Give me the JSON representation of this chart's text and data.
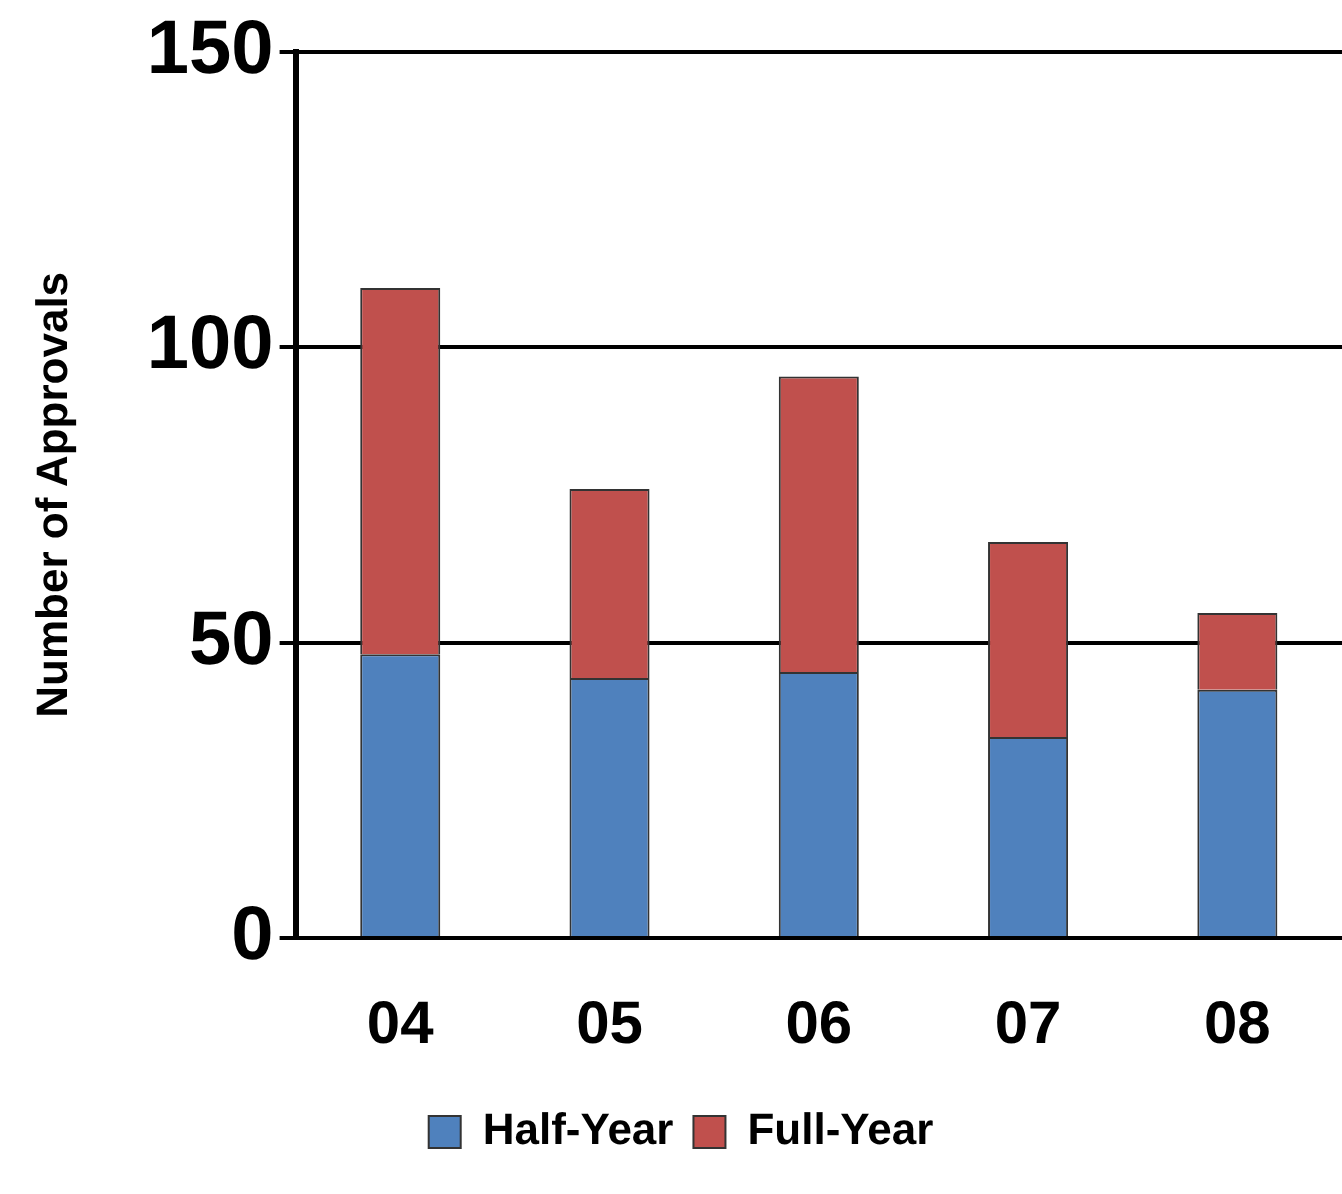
{
  "chart_data": {
    "type": "bar",
    "stacked": true,
    "ylabel": "Number of Approvals",
    "categories": [
      "04",
      "05",
      "06",
      "07",
      "08"
    ],
    "series": [
      {
        "name": "Half-Year",
        "color": "#4f81bd",
        "values": [
          48,
          44,
          45,
          34,
          42
        ]
      },
      {
        "name": "Full-Year",
        "color": "#c0504d",
        "values": [
          62,
          32,
          50,
          33,
          13
        ]
      }
    ],
    "ylim": [
      0,
      150
    ],
    "yticks": [
      0,
      50,
      100,
      150
    ],
    "grid": "y",
    "legend": "bottom"
  }
}
